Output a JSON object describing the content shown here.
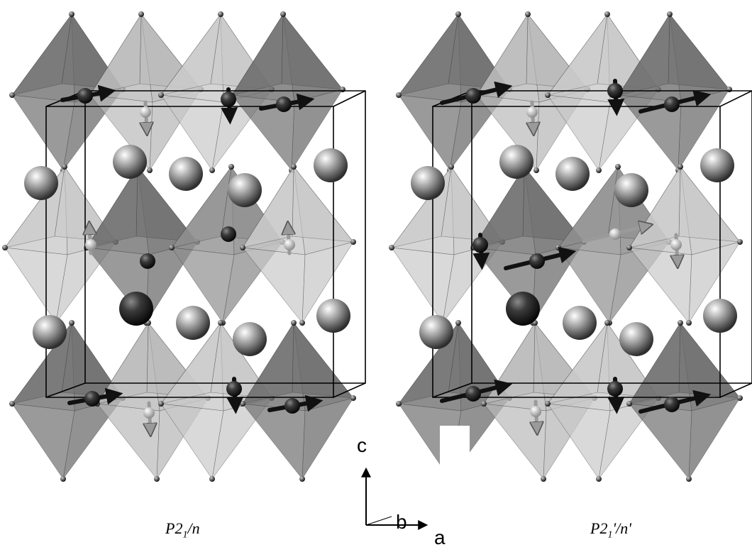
{
  "panels": [
    {
      "label_main": "P2",
      "label_sub": "1",
      "label_tail": "/n",
      "fe_spins": [
        "dark-horizontal",
        "dark-down",
        "dark-horizontal",
        "light-down",
        "light-up",
        "dark-point",
        "dark-point",
        "light-up"
      ]
    },
    {
      "label_main": "P2",
      "label_sub": "1",
      "label_tail": "'/n'",
      "fe_spins": [
        "dark-tilted",
        "dark-down",
        "dark-tilted",
        "light-down",
        "dark-down",
        "dark-tilted",
        "light-tilted",
        "light-down"
      ]
    }
  ],
  "axes": {
    "c": "c",
    "b": "b",
    "a": "a"
  },
  "colors": {
    "octa_dark": "#6e6e6e",
    "octa_mid": "#8e8e8e",
    "octa_light": "#b9b9b9",
    "edge": "#3a3a3a",
    "cell": "#000000",
    "sphere_light": "#ffffff",
    "sphere_dark": "#2a2a2a"
  }
}
